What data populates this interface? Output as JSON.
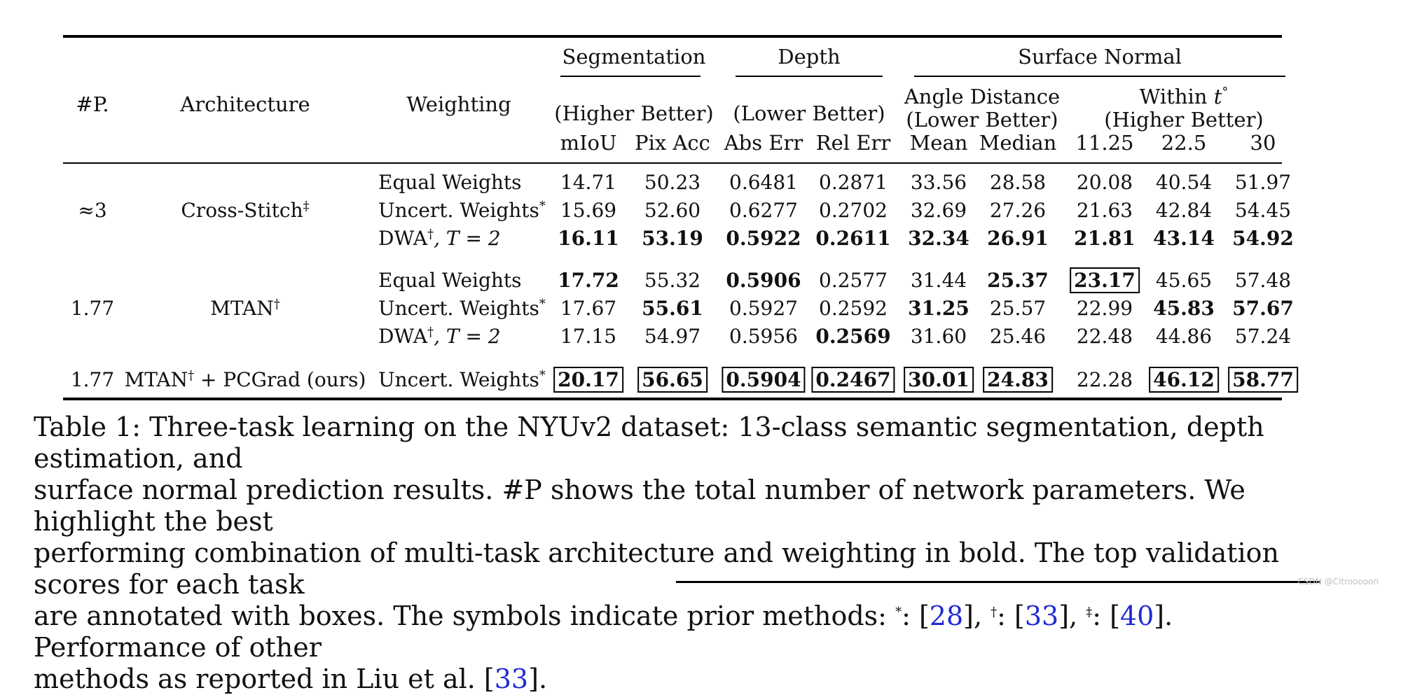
{
  "table": {
    "groups": {
      "seg": "Segmentation",
      "depth": "Depth",
      "sn": "Surface Normal"
    },
    "left_headers": {
      "params": "#P.",
      "arch": "Architecture",
      "weighting": "Weighting"
    },
    "subgroups": {
      "seg": "(Higher Better)",
      "depth": "(Lower Better)",
      "angle_1": "Angle Distance",
      "angle_2": "(Lower Better)",
      "within_1": "Within",
      "within_var": "t",
      "within_sup": "°",
      "within_2": "(Higher Better)"
    },
    "columns": [
      "mIoU",
      "Pix Acc",
      "Abs Err",
      "Rel Err",
      "Mean",
      "Median",
      "11.25",
      "22.5",
      "30"
    ],
    "blocks": [
      {
        "params": "≈3",
        "arch": "Cross-Stitch",
        "arch_sup": "‡",
        "rows": [
          {
            "weighting": "Equal Weights",
            "w_sup": "",
            "w_tail": "",
            "values": [
              "14.71",
              "50.23",
              "0.6481",
              "0.2871",
              "33.56",
              "28.58",
              "20.08",
              "40.54",
              "51.97"
            ],
            "bold": [
              false,
              false,
              false,
              false,
              false,
              false,
              false,
              false,
              false
            ],
            "boxed": [
              false,
              false,
              false,
              false,
              false,
              false,
              false,
              false,
              false
            ]
          },
          {
            "weighting": "Uncert. Weights",
            "w_sup": "*",
            "w_tail": "",
            "values": [
              "15.69",
              "52.60",
              "0.6277",
              "0.2702",
              "32.69",
              "27.26",
              "21.63",
              "42.84",
              "54.45"
            ],
            "bold": [
              false,
              false,
              false,
              false,
              false,
              false,
              false,
              false,
              false
            ],
            "boxed": [
              false,
              false,
              false,
              false,
              false,
              false,
              false,
              false,
              false
            ]
          },
          {
            "weighting": "DWA",
            "w_sup": "†",
            "w_tail": ", T = 2",
            "values": [
              "16.11",
              "53.19",
              "0.5922",
              "0.2611",
              "32.34",
              "26.91",
              "21.81",
              "43.14",
              "54.92"
            ],
            "bold": [
              true,
              true,
              true,
              true,
              true,
              true,
              true,
              true,
              true
            ],
            "boxed": [
              false,
              false,
              false,
              false,
              false,
              false,
              false,
              false,
              false
            ]
          }
        ]
      },
      {
        "params": "1.77",
        "arch": "MTAN",
        "arch_sup": "†",
        "rows": [
          {
            "weighting": "Equal Weights",
            "w_sup": "",
            "w_tail": "",
            "values": [
              "17.72",
              "55.32",
              "0.5906",
              "0.2577",
              "31.44",
              "25.37",
              "23.17",
              "45.65",
              "57.48"
            ],
            "bold": [
              true,
              false,
              true,
              false,
              false,
              true,
              true,
              false,
              false
            ],
            "boxed": [
              false,
              false,
              false,
              false,
              false,
              false,
              true,
              false,
              false
            ]
          },
          {
            "weighting": "Uncert. Weights",
            "w_sup": "*",
            "w_tail": "",
            "values": [
              "17.67",
              "55.61",
              "0.5927",
              "0.2592",
              "31.25",
              "25.57",
              "22.99",
              "45.83",
              "57.67"
            ],
            "bold": [
              false,
              true,
              false,
              false,
              true,
              false,
              false,
              true,
              true
            ],
            "boxed": [
              false,
              false,
              false,
              false,
              false,
              false,
              false,
              false,
              false
            ]
          },
          {
            "weighting": "DWA",
            "w_sup": "†",
            "w_tail": ", T = 2",
            "values": [
              "17.15",
              "54.97",
              "0.5956",
              "0.2569",
              "31.60",
              "25.46",
              "22.48",
              "44.86",
              "57.24"
            ],
            "bold": [
              false,
              false,
              false,
              true,
              false,
              false,
              false,
              false,
              false
            ],
            "boxed": [
              false,
              false,
              false,
              false,
              false,
              false,
              false,
              false,
              false
            ]
          }
        ]
      },
      {
        "params": "1.77",
        "arch": "MTAN",
        "arch_sup": "†",
        "arch_tail": " + PCGrad (ours)",
        "rows": [
          {
            "weighting": "Uncert. Weights",
            "w_sup": "*",
            "w_tail": "",
            "values": [
              "20.17",
              "56.65",
              "0.5904",
              "0.2467",
              "30.01",
              "24.83",
              "22.28",
              "46.12",
              "58.77"
            ],
            "bold": [
              true,
              true,
              true,
              true,
              true,
              true,
              false,
              true,
              true
            ],
            "boxed": [
              true,
              true,
              true,
              true,
              true,
              true,
              false,
              true,
              true
            ]
          }
        ]
      }
    ]
  },
  "caption": {
    "label": "Table 1:",
    "line1": "Three-task learning on the NYUv2 dataset: 13-class semantic segmentation, depth estimation, and",
    "line2": "surface normal prediction results. #P shows the total number of network parameters. We highlight the best",
    "line3": "performing combination of multi-task architecture and weighting in bold. The top validation scores for each task",
    "line4_a": "are annotated with boxes. The symbols indicate prior methods: ",
    "sym1": "*",
    "sym2": "†",
    "sym3": "‡",
    "ref1": "28",
    "ref2": "33",
    "ref3": "40",
    "line4_b": ". Performance of other",
    "line5_a": "methods as reported in Liu et al. ",
    "ref4": "33",
    "line5_b": "."
  },
  "watermark": "CSDN @Citrooooon"
}
